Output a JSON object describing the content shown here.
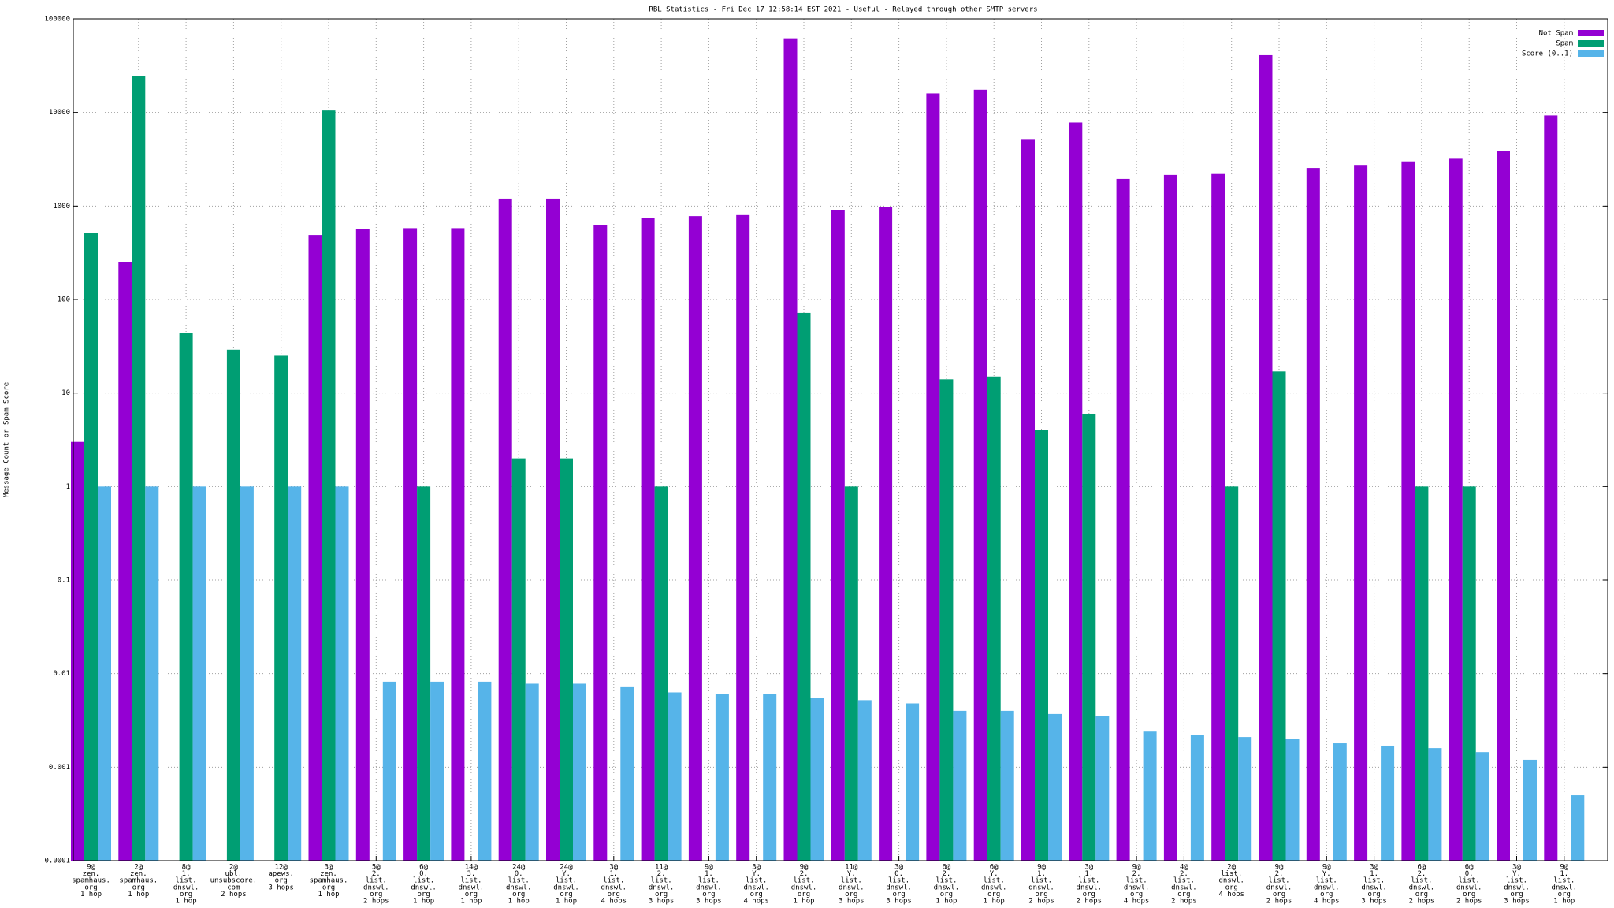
{
  "chart_data": {
    "type": "bar",
    "title": "RBL Statistics - Fri Dec 17 12:58:14 EST 2021 - Useful - Relayed through other SMTP servers",
    "y_label": "Message Count or Spam Score",
    "categories": [
      [
        "9@",
        "zen.",
        "spamhaus.",
        "org",
        "1 hop"
      ],
      [
        "2@",
        "zen.",
        "spamhaus.",
        "org",
        "1 hop"
      ],
      [
        "8@",
        "1.",
        "list.",
        "dnswl.",
        "org",
        "1 hop"
      ],
      [
        "2@",
        "ubl.",
        "unsubscore.",
        "com",
        "2 hops"
      ],
      [
        "12@",
        "apews.",
        "org",
        "3 hops"
      ],
      [
        "3@",
        "zen.",
        "spamhaus.",
        "org",
        "1 hop"
      ],
      [
        "5@",
        "2.",
        "list.",
        "dnswl.",
        "org",
        "2 hops"
      ],
      [
        "6@",
        "0.",
        "list.",
        "dnswl.",
        "org",
        "1 hop"
      ],
      [
        "14@",
        "3.",
        "list.",
        "dnswl.",
        "org",
        "1 hop"
      ],
      [
        "24@",
        "0.",
        "list.",
        "dnswl.",
        "org",
        "1 hop"
      ],
      [
        "24@",
        "Y.",
        "list.",
        "dnswl.",
        "org",
        "1 hop"
      ],
      [
        "3@",
        "1.",
        "list.",
        "dnswl.",
        "org",
        "4 hops"
      ],
      [
        "11@",
        "2.",
        "list.",
        "dnswl.",
        "org",
        "3 hops"
      ],
      [
        "9@",
        "1.",
        "list.",
        "dnswl.",
        "org",
        "3 hops"
      ],
      [
        "3@",
        "Y.",
        "list.",
        "dnswl.",
        "org",
        "4 hops"
      ],
      [
        "9@",
        "2.",
        "list.",
        "dnswl.",
        "org",
        "1 hop"
      ],
      [
        "11@",
        "Y.",
        "list.",
        "dnswl.",
        "org",
        "3 hops"
      ],
      [
        "3@",
        "0.",
        "list.",
        "dnswl.",
        "org",
        "3 hops"
      ],
      [
        "6@",
        "2.",
        "list.",
        "dnswl.",
        "org",
        "1 hop"
      ],
      [
        "6@",
        "Y.",
        "list.",
        "dnswl.",
        "org",
        "1 hop"
      ],
      [
        "9@",
        "1.",
        "list.",
        "dnswl.",
        "org",
        "2 hops"
      ],
      [
        "3@",
        "1.",
        "list.",
        "dnswl.",
        "org",
        "2 hops"
      ],
      [
        "9@",
        "2.",
        "list.",
        "dnswl.",
        "org",
        "4 hops"
      ],
      [
        "4@",
        "2.",
        "list.",
        "dnswl.",
        "org",
        "2 hops"
      ],
      [
        "2@",
        "list.",
        "dnswl.",
        "org",
        "4 hops"
      ],
      [
        "9@",
        "2.",
        "list.",
        "dnswl.",
        "org",
        "2 hops"
      ],
      [
        "9@",
        "Y.",
        "list.",
        "dnswl.",
        "org",
        "4 hops"
      ],
      [
        "3@",
        "1.",
        "list.",
        "dnswl.",
        "org",
        "3 hops"
      ],
      [
        "6@",
        "2.",
        "list.",
        "dnswl.",
        "org",
        "2 hops"
      ],
      [
        "6@",
        "0.",
        "list.",
        "dnswl.",
        "org",
        "2 hops"
      ],
      [
        "3@",
        "Y.",
        "list.",
        "dnswl.",
        "org",
        "3 hops"
      ],
      [
        "9@",
        "1.",
        "list.",
        "dnswl.",
        "org",
        "1 hop"
      ]
    ],
    "series": [
      {
        "name": "Not Spam",
        "color": "#9400d3",
        "values": [
          3,
          250,
          null,
          null,
          null,
          490,
          570,
          580,
          580,
          1200,
          1200,
          630,
          750,
          780,
          800,
          62000,
          900,
          980,
          16000,
          17500,
          5200,
          7800,
          1950,
          2150,
          2200,
          41000,
          2550,
          2750,
          3000,
          3200,
          3900,
          9300
        ]
      },
      {
        "name": "Spam",
        "color": "#009e73",
        "values": [
          520,
          24500,
          44,
          29,
          25,
          10500,
          null,
          1,
          null,
          2,
          2,
          null,
          1,
          null,
          null,
          72,
          1,
          null,
          14,
          15,
          4,
          6,
          null,
          null,
          1,
          17,
          null,
          null,
          1,
          1,
          null,
          null
        ]
      },
      {
        "name": "Score (0..1)",
        "color": "#56b4e9",
        "values": [
          1,
          1,
          1,
          1,
          1,
          1,
          0.0082,
          0.0082,
          0.0082,
          0.0078,
          0.0078,
          0.0073,
          0.0063,
          0.006,
          0.006,
          0.0055,
          0.0052,
          0.0048,
          0.004,
          0.004,
          0.0037,
          0.0035,
          0.0024,
          0.0022,
          0.0021,
          0.002,
          0.0018,
          0.0017,
          0.0016,
          0.00145,
          0.0012,
          0.0005
        ]
      }
    ],
    "ylim": [
      0.0001,
      100000
    ],
    "yticks": [
      0.0001,
      0.001,
      0.01,
      0.1,
      1,
      10,
      100,
      1000,
      10000,
      100000
    ],
    "log_scale": true,
    "grid": true,
    "legend": "upper right"
  }
}
